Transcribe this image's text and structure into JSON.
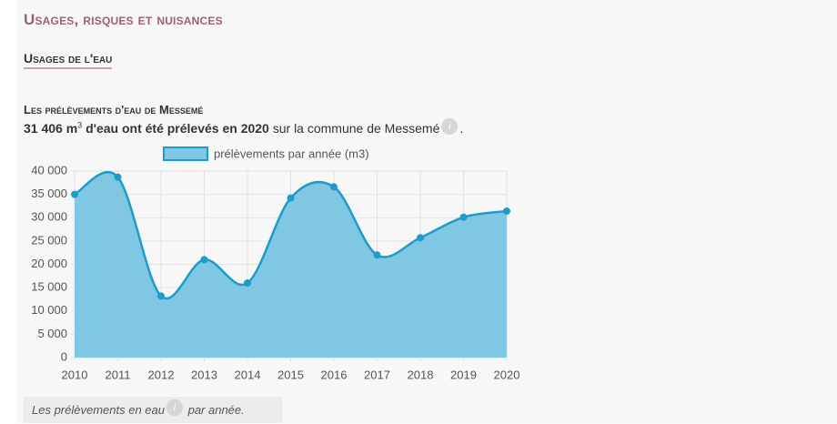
{
  "header": {
    "title": "Usages, risques et nuisances",
    "subtitle": "Usages de l'eau"
  },
  "summary": {
    "title": "Les prélèvements d'eau de Messemé",
    "amount": "31 406 m",
    "superscript": "3",
    "bold_rest": " d'eau ont été prélevés en 2020",
    "rest": " sur la commune de Messemé",
    "icon": "i",
    "end": "."
  },
  "caption": {
    "text": "Les prélèvements en eau",
    "icon": "i",
    "rest": " par année."
  },
  "chart_data": {
    "type": "line",
    "area": true,
    "x": [
      2010,
      2011,
      2012,
      2013,
      2014,
      2015,
      2016,
      2017,
      2018,
      2019,
      2020
    ],
    "series": [
      {
        "name": "prélèvements par année (m3)",
        "color": "#1e9bcb",
        "fill": "#7fc7e2",
        "values": [
          35000,
          38700,
          13200,
          21000,
          16000,
          34200,
          36600,
          22000,
          25700,
          30100,
          31406
        ]
      }
    ],
    "xlim": [
      2010,
      2020
    ],
    "xticks": [
      2010,
      2011,
      2012,
      2013,
      2014,
      2015,
      2016,
      2017,
      2018,
      2019,
      2020
    ],
    "ylim": [
      0,
      40000
    ],
    "yticks": [
      0,
      {
        "value": 5000,
        "label": "5 000"
      },
      {
        "value": 10000,
        "label": "10 000"
      },
      {
        "value": 15000,
        "label": "15 000"
      },
      {
        "value": 20000,
        "label": "20 000"
      },
      {
        "value": 25000,
        "label": "25 000"
      },
      {
        "value": 30000,
        "label": "30 000"
      },
      {
        "value": 35000,
        "label": "35 000"
      },
      {
        "value": 40000,
        "label": "40 000"
      }
    ],
    "grid": true,
    "legend": "top"
  }
}
